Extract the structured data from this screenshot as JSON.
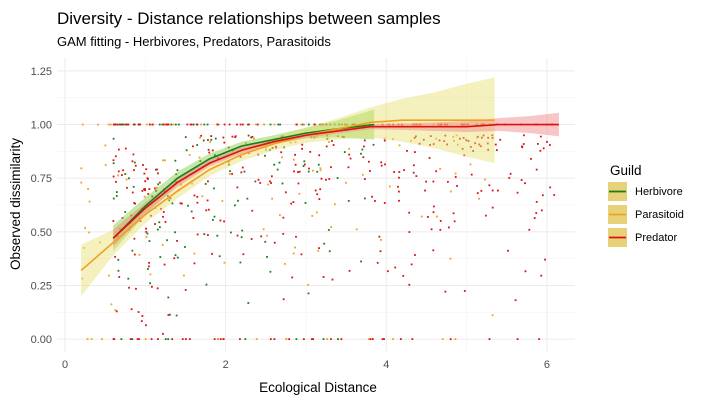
{
  "chart_data": {
    "type": "scatter",
    "title": "Diversity - Distance relationships between samples",
    "subtitle": "GAM fitting - Herbivores, Predators, Parasitoids",
    "xlabel": "Ecological Distance",
    "ylabel": "Observed dissimilarity",
    "xlim": [
      -0.1,
      6.35
    ],
    "ylim": [
      -0.06,
      1.31
    ],
    "xticks": [
      0,
      2,
      4,
      6
    ],
    "yticks": [
      0.0,
      0.25,
      0.5,
      0.75,
      1.0,
      1.25
    ],
    "ytick_labels": [
      "0.00",
      "0.25",
      "0.50",
      "0.75",
      "1.00",
      "1.25"
    ],
    "grid": true,
    "legend": {
      "title": "Guild",
      "position": "right",
      "entries": [
        "Herbivore",
        "Parasitoid",
        "Predator"
      ]
    },
    "series": [
      {
        "name": "Herbivore",
        "color": "#1a7d1a",
        "ribbon_color": "#7ccd3c",
        "x_range": [
          0.6,
          3.85
        ],
        "fit_x": [
          0.6,
          1.0,
          1.4,
          1.8,
          2.2,
          2.6,
          3.0,
          3.4,
          3.85
        ],
        "fit_y": [
          0.47,
          0.62,
          0.75,
          0.84,
          0.9,
          0.93,
          0.96,
          0.98,
          1.0
        ],
        "fit_se": [
          0.06,
          0.04,
          0.03,
          0.025,
          0.02,
          0.02,
          0.025,
          0.04,
          0.07
        ]
      },
      {
        "name": "Parasitoid",
        "color": "#f0a020",
        "ribbon_color": "#e6e070",
        "x_range": [
          0.2,
          5.35
        ],
        "fit_x": [
          0.2,
          0.6,
          1.0,
          1.4,
          1.8,
          2.2,
          2.6,
          3.0,
          3.4,
          3.8,
          4.2,
          4.6,
          5.0,
          5.35
        ],
        "fit_y": [
          0.32,
          0.45,
          0.58,
          0.69,
          0.79,
          0.86,
          0.91,
          0.95,
          0.98,
          1.01,
          1.02,
          1.02,
          1.02,
          1.02
        ],
        "fit_se": [
          0.12,
          0.06,
          0.04,
          0.035,
          0.03,
          0.03,
          0.03,
          0.035,
          0.05,
          0.07,
          0.1,
          0.13,
          0.17,
          0.2
        ]
      },
      {
        "name": "Predator",
        "color": "#dd1111",
        "ribbon_color": "#f08080",
        "x_range": [
          0.6,
          6.15
        ],
        "fit_x": [
          0.6,
          1.0,
          1.4,
          1.8,
          2.2,
          2.6,
          3.0,
          3.4,
          3.8,
          4.2,
          4.6,
          5.0,
          5.4,
          5.8,
          6.15
        ],
        "fit_y": [
          0.47,
          0.61,
          0.73,
          0.82,
          0.88,
          0.92,
          0.95,
          0.97,
          0.99,
          0.99,
          0.99,
          0.99,
          1.0,
          1.0,
          1.0
        ],
        "fit_se": [
          0.04,
          0.025,
          0.02,
          0.015,
          0.015,
          0.012,
          0.012,
          0.012,
          0.012,
          0.015,
          0.02,
          0.025,
          0.03,
          0.04,
          0.055
        ]
      }
    ]
  }
}
